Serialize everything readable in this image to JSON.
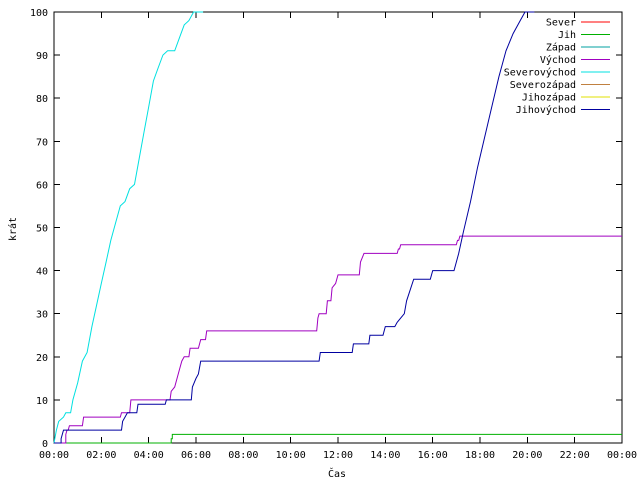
{
  "chart_data": {
    "type": "line",
    "title": "",
    "xlabel": "Čas",
    "ylabel": "krát",
    "xlim": [
      0,
      24
    ],
    "ylim": [
      0,
      100
    ],
    "x_ticks": [
      {
        "value": 0,
        "label": "00:00"
      },
      {
        "value": 2,
        "label": "02:00"
      },
      {
        "value": 4,
        "label": "04:00"
      },
      {
        "value": 6,
        "label": "06:00"
      },
      {
        "value": 8,
        "label": "08:00"
      },
      {
        "value": 10,
        "label": "10:00"
      },
      {
        "value": 12,
        "label": "12:00"
      },
      {
        "value": 14,
        "label": "14:00"
      },
      {
        "value": 16,
        "label": "16:00"
      },
      {
        "value": 18,
        "label": "18:00"
      },
      {
        "value": 20,
        "label": "20:00"
      },
      {
        "value": 22,
        "label": "22:00"
      },
      {
        "value": 24,
        "label": "00:00"
      }
    ],
    "y_ticks": [
      0,
      10,
      20,
      30,
      40,
      50,
      60,
      70,
      80,
      90,
      100
    ],
    "grid": false,
    "legend": "top-right",
    "series": [
      {
        "name": "Sever",
        "color": "#ff0000",
        "points": []
      },
      {
        "name": "Jih",
        "color": "#00b000",
        "points": [
          [
            0,
            0
          ],
          [
            4.95,
            0
          ],
          [
            4.95,
            1
          ],
          [
            5.0,
            1
          ],
          [
            5.0,
            2
          ],
          [
            24,
            2
          ]
        ]
      },
      {
        "name": "Západ",
        "color": "#00a0a0",
        "points": []
      },
      {
        "name": "Východ",
        "color": "#a000c0",
        "points": [
          [
            0,
            0
          ],
          [
            0.5,
            0
          ],
          [
            0.5,
            2
          ],
          [
            0.55,
            3
          ],
          [
            0.6,
            3
          ],
          [
            0.65,
            4
          ],
          [
            1.2,
            4
          ],
          [
            1.25,
            6
          ],
          [
            2.8,
            6
          ],
          [
            2.85,
            7
          ],
          [
            3.2,
            7
          ],
          [
            3.25,
            10
          ],
          [
            4.9,
            10
          ],
          [
            4.95,
            12
          ],
          [
            5.1,
            13
          ],
          [
            5.3,
            17
          ],
          [
            5.4,
            19
          ],
          [
            5.5,
            20
          ],
          [
            5.7,
            20
          ],
          [
            5.75,
            22
          ],
          [
            6.1,
            22
          ],
          [
            6.2,
            24
          ],
          [
            6.4,
            24
          ],
          [
            6.45,
            26
          ],
          [
            11.1,
            26
          ],
          [
            11.15,
            29
          ],
          [
            11.2,
            30
          ],
          [
            11.5,
            30
          ],
          [
            11.55,
            33
          ],
          [
            11.7,
            33
          ],
          [
            11.75,
            36
          ],
          [
            11.9,
            37
          ],
          [
            12.0,
            39
          ],
          [
            12.9,
            39
          ],
          [
            12.95,
            42
          ],
          [
            13.1,
            44
          ],
          [
            14.5,
            44
          ],
          [
            14.55,
            45
          ],
          [
            14.6,
            45
          ],
          [
            14.65,
            46
          ],
          [
            17.0,
            46
          ],
          [
            17.05,
            47
          ],
          [
            17.1,
            47
          ],
          [
            17.15,
            48
          ],
          [
            24,
            48
          ]
        ]
      },
      {
        "name": "Severovýchod",
        "color": "#00e0e0",
        "points": [
          [
            0,
            0
          ],
          [
            0.1,
            3
          ],
          [
            0.2,
            5
          ],
          [
            0.4,
            6
          ],
          [
            0.5,
            7
          ],
          [
            0.7,
            7
          ],
          [
            0.8,
            10
          ],
          [
            1.0,
            14
          ],
          [
            1.2,
            19
          ],
          [
            1.4,
            21
          ],
          [
            1.6,
            27
          ],
          [
            1.8,
            32
          ],
          [
            2.0,
            37
          ],
          [
            2.2,
            42
          ],
          [
            2.4,
            47
          ],
          [
            2.6,
            51
          ],
          [
            2.8,
            55
          ],
          [
            3.0,
            56
          ],
          [
            3.2,
            59
          ],
          [
            3.4,
            60
          ],
          [
            3.6,
            66
          ],
          [
            3.8,
            72
          ],
          [
            4.0,
            78
          ],
          [
            4.2,
            84
          ],
          [
            4.4,
            87
          ],
          [
            4.6,
            90
          ],
          [
            4.8,
            91
          ],
          [
            5.1,
            91
          ],
          [
            5.3,
            94
          ],
          [
            5.5,
            97
          ],
          [
            5.7,
            98
          ],
          [
            5.9,
            100
          ],
          [
            6.3,
            100
          ]
        ]
      },
      {
        "name": "Severozápad",
        "color": "#c08040",
        "points": []
      },
      {
        "name": "Jihozápad",
        "color": "#e0e000",
        "points": []
      },
      {
        "name": "Jihovýchod",
        "color": "#0000a0",
        "points": [
          [
            0,
            0
          ],
          [
            0.3,
            0
          ],
          [
            0.3,
            1
          ],
          [
            0.35,
            2
          ],
          [
            0.4,
            3
          ],
          [
            2.85,
            3
          ],
          [
            2.9,
            5
          ],
          [
            3.0,
            6
          ],
          [
            3.1,
            7
          ],
          [
            3.5,
            7
          ],
          [
            3.55,
            9
          ],
          [
            4.7,
            9
          ],
          [
            4.75,
            10
          ],
          [
            5.8,
            10
          ],
          [
            5.85,
            13
          ],
          [
            6.0,
            15
          ],
          [
            6.1,
            16
          ],
          [
            6.2,
            19
          ],
          [
            11.2,
            19
          ],
          [
            11.25,
            21
          ],
          [
            12.6,
            21
          ],
          [
            12.65,
            23
          ],
          [
            13.3,
            23
          ],
          [
            13.35,
            25
          ],
          [
            13.9,
            25
          ],
          [
            14.0,
            27
          ],
          [
            14.4,
            27
          ],
          [
            14.5,
            28
          ],
          [
            14.8,
            30
          ],
          [
            14.9,
            33
          ],
          [
            15.2,
            38
          ],
          [
            15.9,
            38
          ],
          [
            16.0,
            40
          ],
          [
            16.9,
            40
          ],
          [
            17.1,
            44
          ],
          [
            17.3,
            49
          ],
          [
            17.6,
            56
          ],
          [
            17.9,
            64
          ],
          [
            18.2,
            71
          ],
          [
            18.5,
            78
          ],
          [
            18.8,
            85
          ],
          [
            19.1,
            91
          ],
          [
            19.4,
            95
          ],
          [
            19.7,
            98
          ],
          [
            19.9,
            100
          ],
          [
            20.3,
            100
          ]
        ]
      }
    ]
  }
}
